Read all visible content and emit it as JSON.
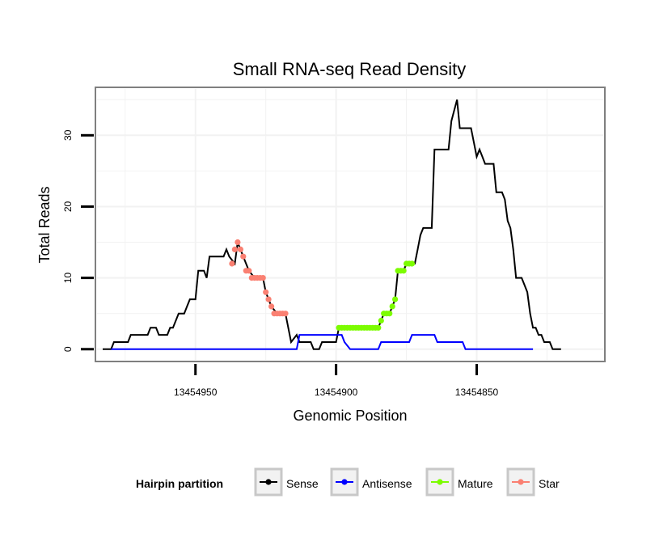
{
  "chart_data": {
    "type": "line",
    "title": "Small RNA-seq Read Density",
    "xlabel": "Genomic Position",
    "ylabel": "Total Reads",
    "x_reversed": true,
    "xlim": [
      13454985,
      13454805
    ],
    "ylim": [
      -1.5,
      36.5
    ],
    "x_ticks": [
      13454950,
      13454900,
      13454850
    ],
    "y_ticks": [
      0,
      10,
      20,
      30
    ],
    "grid": true,
    "legend": {
      "title": "Hairpin partition",
      "position": "bottom",
      "entries": [
        {
          "name": "Sense",
          "color": "#000000"
        },
        {
          "name": "Antisense",
          "color": "#0000FF"
        },
        {
          "name": "Mature",
          "color": "#7CFC00"
        },
        {
          "name": "Star",
          "color": "#FA8072"
        }
      ]
    },
    "series": [
      {
        "name": "Sense",
        "color": "#000000",
        "points": [
          [
            13454983,
            0
          ],
          [
            13454980,
            0
          ],
          [
            13454979,
            1
          ],
          [
            13454974,
            1
          ],
          [
            13454973,
            2
          ],
          [
            13454967,
            2
          ],
          [
            13454966,
            3
          ],
          [
            13454964,
            3
          ],
          [
            13454963,
            2
          ],
          [
            13454960,
            2
          ],
          [
            13454959,
            3
          ],
          [
            13454958,
            3
          ],
          [
            13454957,
            4
          ],
          [
            13454956,
            5
          ],
          [
            13454954,
            5
          ],
          [
            13454953,
            6
          ],
          [
            13454952,
            7
          ],
          [
            13454950,
            7
          ],
          [
            13454949,
            11
          ],
          [
            13454947,
            11
          ],
          [
            13454946,
            10
          ],
          [
            13454945,
            13
          ],
          [
            13454940,
            13
          ],
          [
            13454939,
            14
          ],
          [
            13454938,
            13
          ],
          [
            13454936,
            12
          ],
          [
            13454935,
            15
          ],
          [
            13454933,
            13
          ],
          [
            13454931,
            11
          ],
          [
            13454929,
            10
          ],
          [
            13454926,
            10
          ],
          [
            13454925,
            8
          ],
          [
            13454923,
            6
          ],
          [
            13454921,
            5
          ],
          [
            13454918,
            5
          ],
          [
            13454917,
            3
          ],
          [
            13454916,
            1
          ],
          [
            13454914,
            2
          ],
          [
            13454913,
            1
          ],
          [
            13454909,
            1
          ],
          [
            13454908,
            0
          ],
          [
            13454906,
            0
          ],
          [
            13454905,
            1
          ],
          [
            13454900,
            1
          ],
          [
            13454899,
            3
          ],
          [
            13454885,
            3
          ],
          [
            13454884,
            4
          ],
          [
            13454883,
            5
          ],
          [
            13454881,
            5
          ],
          [
            13454880,
            6
          ],
          [
            13454879,
            7
          ],
          [
            13454878,
            11
          ],
          [
            13454876,
            11
          ],
          [
            13454875,
            12
          ],
          [
            13454872,
            12
          ],
          [
            13454871,
            14
          ],
          [
            13454870,
            16
          ],
          [
            13454869,
            17
          ],
          [
            13454866,
            17
          ],
          [
            13454865,
            28
          ],
          [
            13454860,
            28
          ],
          [
            13454859,
            32
          ],
          [
            13454857,
            35
          ],
          [
            13454856,
            31
          ],
          [
            13454852,
            31
          ],
          [
            13454851,
            29
          ],
          [
            13454850,
            27
          ],
          [
            13454849,
            28
          ],
          [
            13454848,
            27
          ],
          [
            13454847,
            26
          ],
          [
            13454844,
            26
          ],
          [
            13454843,
            22
          ],
          [
            13454841,
            22
          ],
          [
            13454840,
            21
          ],
          [
            13454839,
            18
          ],
          [
            13454838,
            17
          ],
          [
            13454837,
            14
          ],
          [
            13454836,
            10
          ],
          [
            13454834,
            10
          ],
          [
            13454833,
            9
          ],
          [
            13454832,
            8
          ],
          [
            13454831,
            5
          ],
          [
            13454830,
            3
          ],
          [
            13454829,
            3
          ],
          [
            13454828,
            2
          ],
          [
            13454827,
            2
          ],
          [
            13454826,
            1
          ],
          [
            13454824,
            1
          ],
          [
            13454823,
            0
          ],
          [
            13454820,
            0
          ]
        ]
      },
      {
        "name": "Antisense",
        "color": "#0000FF",
        "points": [
          [
            13454980,
            0
          ],
          [
            13454914,
            0
          ],
          [
            13454913,
            2
          ],
          [
            13454898,
            2
          ],
          [
            13454897,
            1
          ],
          [
            13454895,
            0
          ],
          [
            13454885,
            0
          ],
          [
            13454884,
            1
          ],
          [
            13454874,
            1
          ],
          [
            13454873,
            2
          ],
          [
            13454865,
            2
          ],
          [
            13454864,
            1
          ],
          [
            13454855,
            1
          ],
          [
            13454854,
            0
          ],
          [
            13454830,
            0
          ]
        ]
      },
      {
        "name": "Mature",
        "color": "#7CFC00",
        "points": [
          [
            13454899,
            3
          ],
          [
            13454898,
            3
          ],
          [
            13454897,
            3
          ],
          [
            13454896,
            3
          ],
          [
            13454895,
            3
          ],
          [
            13454894,
            3
          ],
          [
            13454893,
            3
          ],
          [
            13454892,
            3
          ],
          [
            13454891,
            3
          ],
          [
            13454890,
            3
          ],
          [
            13454889,
            3
          ],
          [
            13454888,
            3
          ],
          [
            13454887,
            3
          ],
          [
            13454886,
            3
          ],
          [
            13454885,
            3
          ],
          [
            13454884,
            4
          ],
          [
            13454883,
            5
          ],
          [
            13454882,
            5
          ],
          [
            13454881,
            5
          ],
          [
            13454880,
            6
          ],
          [
            13454879,
            7
          ],
          [
            13454878,
            11
          ],
          [
            13454877,
            11
          ],
          [
            13454876,
            11
          ],
          [
            13454875,
            12
          ],
          [
            13454874,
            12
          ],
          [
            13454873,
            12
          ]
        ]
      },
      {
        "name": "Star",
        "color": "#FA8072",
        "points": [
          [
            13454937,
            12
          ],
          [
            13454936,
            14
          ],
          [
            13454935,
            15
          ],
          [
            13454934,
            14
          ],
          [
            13454933,
            13
          ],
          [
            13454932,
            11
          ],
          [
            13454931,
            11
          ],
          [
            13454930,
            10
          ],
          [
            13454929,
            10
          ],
          [
            13454928,
            10
          ],
          [
            13454927,
            10
          ],
          [
            13454926,
            10
          ],
          [
            13454925,
            8
          ],
          [
            13454924,
            7
          ],
          [
            13454923,
            6
          ],
          [
            13454922,
            5
          ],
          [
            13454921,
            5
          ],
          [
            13454920,
            5
          ],
          [
            13454919,
            5
          ],
          [
            13454918,
            5
          ]
        ]
      }
    ]
  }
}
